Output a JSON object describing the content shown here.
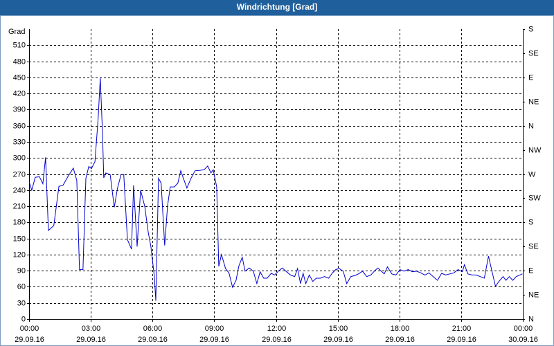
{
  "chart_data": {
    "type": "line",
    "title": "Windrichtung [Grad]",
    "y_label": "Grad",
    "color": "#0000cc",
    "grid": true,
    "xlim": [
      0,
      24
    ],
    "ylim": [
      0,
      540
    ],
    "y2lim": [
      0,
      540
    ],
    "xticks": [
      {
        "value": 0,
        "label": "00:00",
        "date": "29.09.16"
      },
      {
        "value": 3,
        "label": "03:00",
        "date": "29.09.16"
      },
      {
        "value": 6,
        "label": "06:00",
        "date": "29.09.16"
      },
      {
        "value": 9,
        "label": "09:00",
        "date": "29.09.16"
      },
      {
        "value": 12,
        "label": "12:00",
        "date": "29.09.16"
      },
      {
        "value": 15,
        "label": "15:00",
        "date": "29.09.16"
      },
      {
        "value": 18,
        "label": "18:00",
        "date": "29.09.16"
      },
      {
        "value": 21,
        "label": "21:00",
        "date": "29.09.16"
      },
      {
        "value": 24,
        "label": "00:00",
        "date": "30.09.16"
      }
    ],
    "yticks": [
      0,
      30,
      60,
      90,
      120,
      150,
      180,
      210,
      240,
      270,
      300,
      330,
      360,
      390,
      420,
      450,
      480,
      510
    ],
    "y2ticks": [
      {
        "value": 0,
        "label": "N"
      },
      {
        "value": 45,
        "label": "NE"
      },
      {
        "value": 90,
        "label": "E"
      },
      {
        "value": 135,
        "label": "SE"
      },
      {
        "value": 180,
        "label": "S"
      },
      {
        "value": 225,
        "label": "SW"
      },
      {
        "value": 270,
        "label": "W"
      },
      {
        "value": 315,
        "label": "NW"
      },
      {
        "value": 360,
        "label": "N"
      },
      {
        "value": 405,
        "label": "NE"
      },
      {
        "value": 450,
        "label": "E"
      },
      {
        "value": 495,
        "label": "SE"
      },
      {
        "value": 540,
        "label": "S"
      }
    ],
    "x": [
      0,
      0.13,
      0.3,
      0.5,
      0.67,
      0.8,
      0.94,
      1.2,
      1.45,
      1.65,
      1.88,
      2.15,
      2.32,
      2.45,
      2.62,
      2.76,
      2.9,
      3.03,
      3.2,
      3.36,
      3.46,
      3.57,
      3.63,
      3.73,
      3.94,
      4.14,
      4.3,
      4.47,
      4.6,
      4.78,
      4.98,
      5.08,
      5.25,
      5.42,
      5.62,
      5.79,
      5.92,
      6.09,
      6.16,
      6.29,
      6.42,
      6.59,
      6.73,
      6.86,
      7.06,
      7.23,
      7.37,
      7.5,
      7.67,
      7.87,
      8.07,
      8.31,
      8.51,
      8.68,
      8.84,
      8.95,
      9.12,
      9.22,
      9.35,
      9.55,
      9.72,
      9.89,
      10.06,
      10.19,
      10.36,
      10.5,
      10.7,
      10.9,
      11.07,
      11.23,
      11.4,
      11.57,
      11.77,
      11.94,
      12.11,
      12.31,
      12.51,
      12.71,
      12.91,
      13.05,
      13.19,
      13.32,
      13.45,
      13.62,
      13.79,
      13.96,
      14.16,
      14.36,
      14.56,
      14.73,
      14.9,
      15.07,
      15.27,
      15.44,
      15.64,
      15.84,
      16.01,
      16.21,
      16.41,
      16.61,
      16.78,
      16.95,
      17.12,
      17.26,
      17.42,
      17.63,
      17.83,
      18.03,
      18.23,
      18.43,
      18.63,
      18.84,
      19.04,
      19.24,
      19.44,
      19.64,
      19.85,
      20.05,
      20.25,
      20.45,
      20.65,
      20.85,
      21.06,
      21.16,
      21.33,
      21.53,
      21.73,
      21.93,
      22.13,
      22.33,
      22.5,
      22.67,
      22.84,
      23.04,
      23.18,
      23.34,
      23.51,
      23.68,
      23.85,
      23.98
    ],
    "values": [
      256,
      240,
      264,
      265,
      252,
      301,
      165,
      174,
      247,
      249,
      265,
      281,
      258,
      92,
      92,
      262,
      284,
      280,
      293,
      375,
      449,
      343,
      263,
      272,
      269,
      208,
      244,
      269,
      269,
      148,
      130,
      249,
      135,
      240,
      210,
      162,
      135,
      79,
      34,
      262,
      253,
      137,
      210,
      246,
      246,
      253,
      276,
      262,
      244,
      262,
      276,
      277,
      278,
      285,
      272,
      278,
      246,
      98,
      120,
      94,
      85,
      59,
      72,
      98,
      115,
      89,
      95,
      89,
      66,
      88,
      76,
      76,
      85,
      82,
      89,
      95,
      88,
      82,
      79,
      94,
      66,
      85,
      66,
      82,
      70,
      76,
      76,
      79,
      76,
      85,
      92,
      94,
      89,
      66,
      79,
      81,
      84,
      89,
      79,
      82,
      89,
      95,
      89,
      84,
      97,
      84,
      82,
      92,
      89,
      92,
      88,
      89,
      86,
      82,
      86,
      79,
      72,
      85,
      82,
      84,
      86,
      92,
      88,
      101,
      84,
      82,
      82,
      79,
      76,
      117,
      89,
      61,
      70,
      79,
      72,
      79,
      72,
      79,
      82,
      84
    ]
  }
}
